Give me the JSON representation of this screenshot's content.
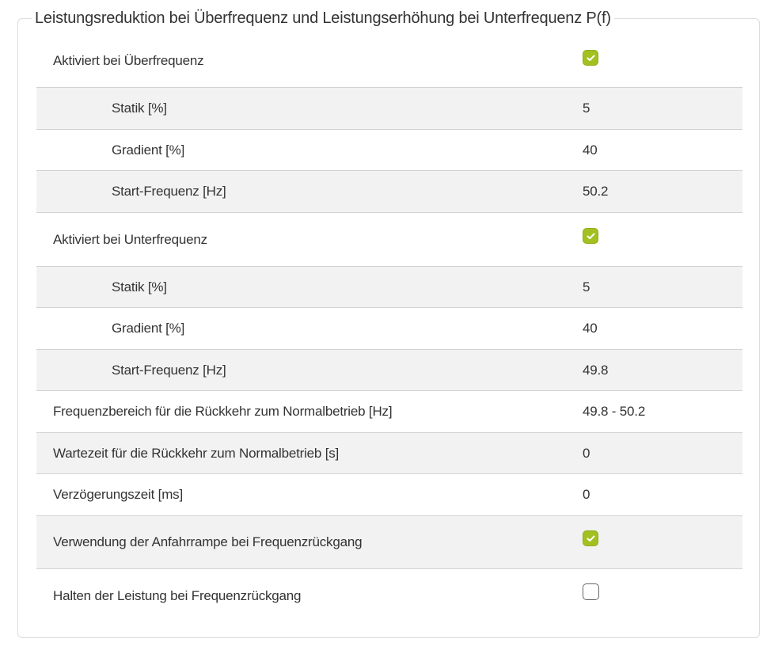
{
  "section": {
    "title": "Leistungsreduktion bei Überfrequenz und Leistungserhöhung bei Unterfrequenz P(f)"
  },
  "colors": {
    "accent_check": "#a3c021",
    "row_shade": "#f2f2f2",
    "divider": "#d2d2d2"
  },
  "rows": [
    {
      "label": "Aktiviert bei Überfrequenz",
      "checked": true
    },
    {
      "label": "Statik [%]",
      "value": "5"
    },
    {
      "label": "Gradient [%]",
      "value": "40"
    },
    {
      "label": "Start-Frequenz [Hz]",
      "value": "50.2"
    },
    {
      "label": "Aktiviert bei Unterfrequenz",
      "checked": true
    },
    {
      "label": "Statik [%]",
      "value": "5"
    },
    {
      "label": "Gradient [%]",
      "value": "40"
    },
    {
      "label": "Start-Frequenz [Hz]",
      "value": "49.8"
    },
    {
      "label": "Frequenzbereich für die Rückkehr zum Normalbetrieb [Hz]",
      "value": "49.8 - 50.2"
    },
    {
      "label": "Wartezeit für die Rückkehr zum Normalbetrieb [s]",
      "value": "0"
    },
    {
      "label": "Verzögerungszeit [ms]",
      "value": "0"
    },
    {
      "label": "Verwendung der Anfahrrampe bei Frequenzrückgang",
      "checked": true
    },
    {
      "label": "Halten der Leistung bei Frequenzrückgang",
      "checked": false
    }
  ]
}
